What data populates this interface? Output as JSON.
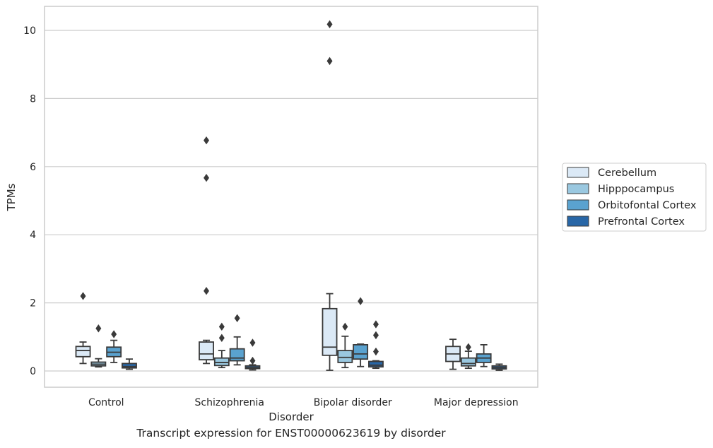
{
  "caption": "Transcript expression for ENST00000623619 by disorder",
  "chart_data": {
    "type": "box",
    "xlabel": "Disorder",
    "ylabel": "TPMs",
    "ylim": [
      -0.45,
      10.7
    ],
    "yticks": [
      0,
      2,
      4,
      6,
      8,
      10
    ],
    "grid": "horizontal",
    "legend_position": "right",
    "categories": [
      "Control",
      "Schizophrenia",
      "Bipolar disorder",
      "Major depression"
    ],
    "series": [
      {
        "name": "Cerebellum",
        "color": "#dbe9f6",
        "boxes": [
          {
            "whislo": 0.22,
            "q1": 0.42,
            "med": 0.6,
            "q3": 0.72,
            "whishi": 0.85,
            "fliers": [
              2.2
            ]
          },
          {
            "whislo": 0.22,
            "q1": 0.33,
            "med": 0.5,
            "q3": 0.85,
            "whishi": 0.9,
            "fliers": [
              2.35,
              5.67,
              6.77
            ]
          },
          {
            "whislo": 0.02,
            "q1": 0.46,
            "med": 0.7,
            "q3": 1.83,
            "whishi": 2.27,
            "fliers": [
              9.1,
              10.18
            ]
          },
          {
            "whislo": 0.05,
            "q1": 0.28,
            "med": 0.5,
            "q3": 0.72,
            "whishi": 0.93,
            "fliers": []
          }
        ]
      },
      {
        "name": "Hipppocampus",
        "color": "#9ac8e0",
        "boxes": [
          {
            "whislo": 0.12,
            "q1": 0.15,
            "med": 0.2,
            "q3": 0.26,
            "whishi": 0.36,
            "fliers": [
              1.25
            ]
          },
          {
            "whislo": 0.1,
            "q1": 0.16,
            "med": 0.25,
            "q3": 0.38,
            "whishi": 0.6,
            "fliers": [
              0.97,
              1.3
            ]
          },
          {
            "whislo": 0.1,
            "q1": 0.25,
            "med": 0.4,
            "q3": 0.6,
            "whishi": 1.02,
            "fliers": [
              1.3
            ]
          },
          {
            "whislo": 0.08,
            "q1": 0.15,
            "med": 0.22,
            "q3": 0.38,
            "whishi": 0.58,
            "fliers": [
              0.7
            ]
          }
        ]
      },
      {
        "name": "Orbitofontal Cortex",
        "color": "#5aa2cf",
        "boxes": [
          {
            "whislo": 0.25,
            "q1": 0.42,
            "med": 0.55,
            "q3": 0.7,
            "whishi": 0.9,
            "fliers": [
              1.08
            ]
          },
          {
            "whislo": 0.18,
            "q1": 0.3,
            "med": 0.38,
            "q3": 0.65,
            "whishi": 1.0,
            "fliers": [
              1.55
            ]
          },
          {
            "whislo": 0.13,
            "q1": 0.35,
            "med": 0.5,
            "q3": 0.77,
            "whishi": 0.79,
            "fliers": [
              2.05
            ]
          },
          {
            "whislo": 0.13,
            "q1": 0.25,
            "med": 0.38,
            "q3": 0.5,
            "whishi": 0.77,
            "fliers": []
          }
        ]
      },
      {
        "name": "Prefrontal Cortex",
        "color": "#2866a6",
        "boxes": [
          {
            "whislo": 0.05,
            "q1": 0.09,
            "med": 0.13,
            "q3": 0.22,
            "whishi": 0.35,
            "fliers": []
          },
          {
            "whislo": 0.03,
            "q1": 0.07,
            "med": 0.1,
            "q3": 0.15,
            "whishi": 0.18,
            "fliers": [
              0.3,
              0.83
            ]
          },
          {
            "whislo": 0.08,
            "q1": 0.12,
            "med": 0.17,
            "q3": 0.28,
            "whishi": 0.3,
            "fliers": [
              0.57,
              1.05,
              1.37
            ]
          },
          {
            "whislo": 0.02,
            "q1": 0.06,
            "med": 0.1,
            "q3": 0.15,
            "whishi": 0.2,
            "fliers": []
          }
        ]
      }
    ]
  }
}
